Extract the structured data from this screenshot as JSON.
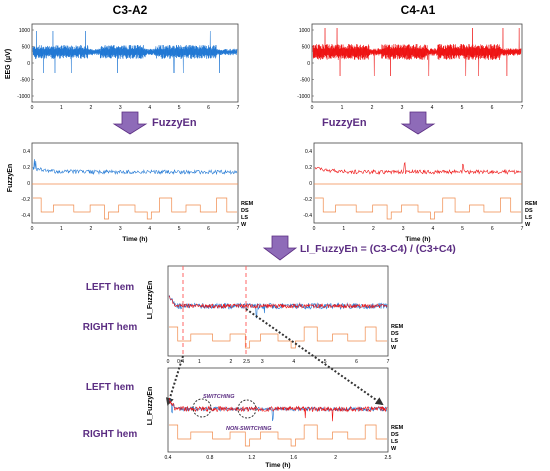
{
  "colors": {
    "blue": "#1f77d4",
    "red": "#ee1111",
    "orange": "#f08a4b",
    "purple": "#5b2d82",
    "purple_fill": "#8e6bb8",
    "axis": "#444444",
    "dashed_red": "#ff6666"
  },
  "panels": {
    "c3_title": "C3-A2",
    "c4_title": "C4-A1",
    "eeg_ylabel": "EEG (μV)",
    "eeg_yticks": [
      "1000",
      "500",
      "0",
      "-500",
      "-1000"
    ],
    "hours_xticks": [
      "0",
      "1",
      "2",
      "3",
      "4",
      "5",
      "6",
      "7"
    ],
    "fuzzyen_label_left": "FuzzyEn",
    "fuzzyen_label_right": "FuzzyEn",
    "fuzzyen_ylabel": "FuzzyEn",
    "fuzzyen_yticks": [
      "0.4",
      "0.2",
      "0",
      "-0.2",
      "-0.4"
    ],
    "time_xlabel": "Time (h)",
    "stages": [
      "REM",
      "DS",
      "LS",
      "W"
    ]
  },
  "formula": "LI_FuzzyEn = (C3-C4) / (C3+C4)",
  "li_section": {
    "ylabel": "LI_FuzzyEn",
    "left_hem": "LEFT hem",
    "right_hem": "RIGHT hem",
    "xticks": [
      "0",
      "0.4",
      "1",
      "2",
      "2.5",
      "3",
      "4",
      "5",
      "6",
      "7"
    ]
  },
  "zoom_section": {
    "ylabel": "LI_FuzzyEn",
    "left_hem": "LEFT hem",
    "right_hem": "RIGHT hem",
    "xticks": [
      "0.4",
      "0.8",
      "1.2",
      "1.6",
      "2",
      "2.5"
    ],
    "xlabel": "Time (h)",
    "switching": "SWITCHING",
    "non_switching": "NON-SWITCHING"
  }
}
